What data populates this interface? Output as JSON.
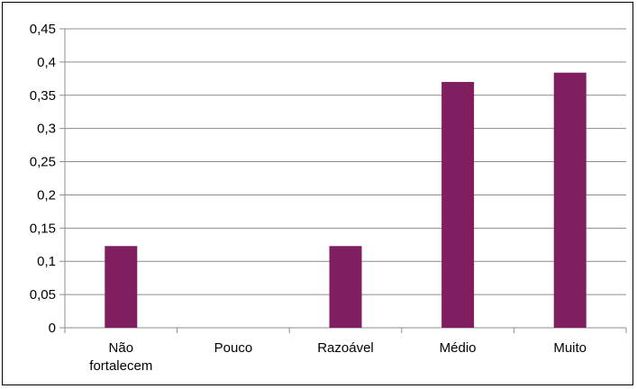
{
  "chart_data": {
    "type": "bar",
    "categories": [
      [
        "Não",
        "fortalecem"
      ],
      [
        "Pouco"
      ],
      [
        "Razoável"
      ],
      [
        "Médio"
      ],
      [
        "Muito"
      ]
    ],
    "values": [
      0.123,
      0,
      0.123,
      0.37,
      0.384
    ],
    "ylim": [
      0,
      0.45
    ],
    "yticks": [
      "0",
      "0,05",
      "0,1",
      "0,15",
      "0,2",
      "0,25",
      "0,3",
      "0,35",
      "0,4",
      "0,45"
    ],
    "grid": true,
    "legend": "none",
    "bar_color": "#7F1F5F",
    "grid_color": "#8C8C8C",
    "axis_color": "#8C8C8C"
  }
}
